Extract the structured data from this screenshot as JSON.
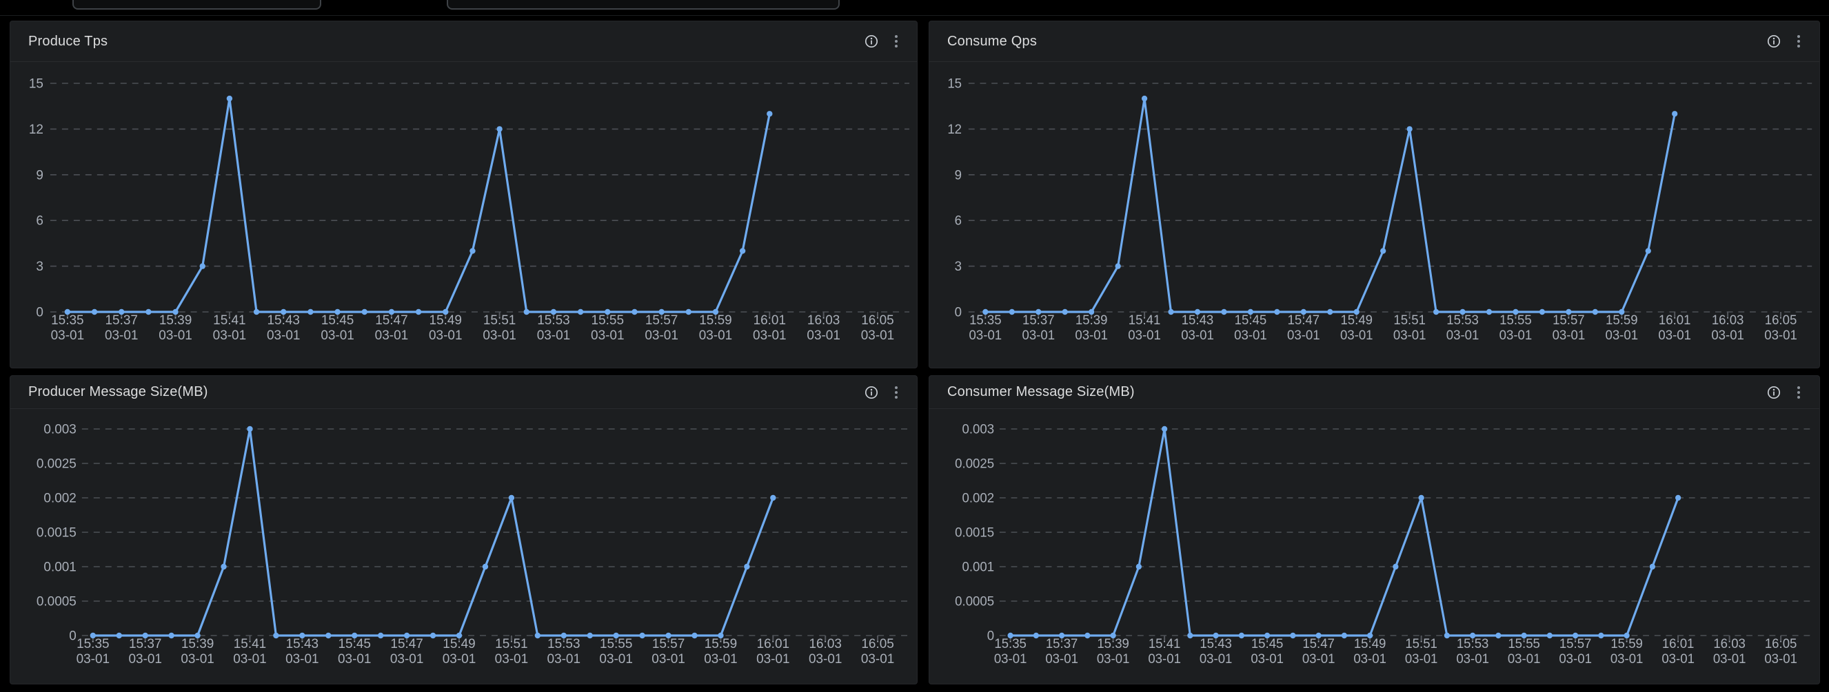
{
  "colors": {
    "page_bg": "#000000",
    "panel_bg": "#1c1e20",
    "line": "#6fabef",
    "grid": "#4d5056",
    "axis_text": "#a9afb8",
    "title_text": "#dcddde",
    "icon": "#c9ced4"
  },
  "topbar": {
    "inputs": [
      {
        "value": "",
        "placeholder": ""
      },
      {
        "value": "",
        "placeholder": ""
      }
    ]
  },
  "time_axis": {
    "tick_times": [
      "15:35",
      "15:37",
      "15:39",
      "15:41",
      "15:43",
      "15:45",
      "15:47",
      "15:49",
      "15:51",
      "15:53",
      "15:55",
      "15:57",
      "15:59",
      "16:01",
      "16:03",
      "16:05"
    ],
    "tick_date": "03-01"
  },
  "panels": [
    {
      "title": "Produce Tps",
      "header_icons": [
        "info-icon",
        "kebab-menu-icon"
      ],
      "chart_data": {
        "type": "line",
        "x": [
          "15:35",
          "15:36",
          "15:37",
          "15:38",
          "15:39",
          "15:40",
          "15:41",
          "15:42",
          "15:43",
          "15:44",
          "15:45",
          "15:46",
          "15:47",
          "15:48",
          "15:49",
          "15:50",
          "15:51",
          "15:52",
          "15:53",
          "15:54",
          "15:55",
          "15:56",
          "15:57",
          "15:58",
          "15:59",
          "16:00",
          "16:01"
        ],
        "values": [
          0,
          0,
          0,
          0,
          0,
          3,
          14,
          0,
          0,
          0,
          0,
          0,
          0,
          0,
          0,
          4,
          12,
          0,
          0,
          0,
          0,
          0,
          0,
          0,
          0,
          4,
          13
        ],
        "title": "Produce Tps",
        "xlabel": "",
        "ylabel": "",
        "ylim": [
          0,
          15
        ],
        "yticks": [
          0,
          3,
          6,
          9,
          12,
          15
        ],
        "ytick_labels": [
          "0",
          "3",
          "6",
          "9",
          "12",
          "15"
        ],
        "x_axis_end": "16:05",
        "grid": "dashed-horizontal",
        "legend": "none"
      }
    },
    {
      "title": "Consume Qps",
      "header_icons": [
        "info-icon",
        "kebab-menu-icon"
      ],
      "chart_data": {
        "type": "line",
        "x": [
          "15:35",
          "15:36",
          "15:37",
          "15:38",
          "15:39",
          "15:40",
          "15:41",
          "15:42",
          "15:43",
          "15:44",
          "15:45",
          "15:46",
          "15:47",
          "15:48",
          "15:49",
          "15:50",
          "15:51",
          "15:52",
          "15:53",
          "15:54",
          "15:55",
          "15:56",
          "15:57",
          "15:58",
          "15:59",
          "16:00",
          "16:01"
        ],
        "values": [
          0,
          0,
          0,
          0,
          0,
          3,
          14,
          0,
          0,
          0,
          0,
          0,
          0,
          0,
          0,
          4,
          12,
          0,
          0,
          0,
          0,
          0,
          0,
          0,
          0,
          4,
          13
        ],
        "title": "Consume Qps",
        "xlabel": "",
        "ylabel": "",
        "ylim": [
          0,
          15
        ],
        "yticks": [
          0,
          3,
          6,
          9,
          12,
          15
        ],
        "ytick_labels": [
          "0",
          "3",
          "6",
          "9",
          "12",
          "15"
        ],
        "x_axis_end": "16:05",
        "grid": "dashed-horizontal",
        "legend": "none"
      }
    },
    {
      "title": "Producer Message Size(MB)",
      "header_icons": [
        "info-icon",
        "kebab-menu-icon"
      ],
      "chart_data": {
        "type": "line",
        "x": [
          "15:35",
          "15:36",
          "15:37",
          "15:38",
          "15:39",
          "15:40",
          "15:41",
          "15:42",
          "15:43",
          "15:44",
          "15:45",
          "15:46",
          "15:47",
          "15:48",
          "15:49",
          "15:50",
          "15:51",
          "15:52",
          "15:53",
          "15:54",
          "15:55",
          "15:56",
          "15:57",
          "15:58",
          "15:59",
          "16:00",
          "16:01"
        ],
        "values": [
          0,
          0,
          0,
          0,
          0,
          0.001,
          0.003,
          0,
          0,
          0,
          0,
          0,
          0,
          0,
          0,
          0.001,
          0.002,
          0,
          0,
          0,
          0,
          0,
          0,
          0,
          0,
          0.001,
          0.002
        ],
        "title": "Producer Message Size(MB)",
        "xlabel": "",
        "ylabel": "",
        "ylim": [
          0,
          0.003
        ],
        "yticks": [
          0,
          0.0005,
          0.001,
          0.0015,
          0.002,
          0.0025,
          0.003
        ],
        "ytick_labels": [
          "0",
          "0.0005",
          "0.001",
          "0.0015",
          "0.002",
          "0.0025",
          "0.003"
        ],
        "x_axis_end": "16:05",
        "grid": "dashed-horizontal",
        "legend": "none"
      }
    },
    {
      "title": "Consumer Message Size(MB)",
      "header_icons": [
        "info-icon",
        "kebab-menu-icon"
      ],
      "chart_data": {
        "type": "line",
        "x": [
          "15:35",
          "15:36",
          "15:37",
          "15:38",
          "15:39",
          "15:40",
          "15:41",
          "15:42",
          "15:43",
          "15:44",
          "15:45",
          "15:46",
          "15:47",
          "15:48",
          "15:49",
          "15:50",
          "15:51",
          "15:52",
          "15:53",
          "15:54",
          "15:55",
          "15:56",
          "15:57",
          "15:58",
          "15:59",
          "16:00",
          "16:01"
        ],
        "values": [
          0,
          0,
          0,
          0,
          0,
          0.001,
          0.003,
          0,
          0,
          0,
          0,
          0,
          0,
          0,
          0,
          0.001,
          0.002,
          0,
          0,
          0,
          0,
          0,
          0,
          0,
          0,
          0.001,
          0.002
        ],
        "title": "Consumer Message Size(MB)",
        "xlabel": "",
        "ylabel": "",
        "ylim": [
          0,
          0.003
        ],
        "yticks": [
          0,
          0.0005,
          0.001,
          0.0015,
          0.002,
          0.0025,
          0.003
        ],
        "ytick_labels": [
          "0",
          "0.0005",
          "0.001",
          "0.0015",
          "0.002",
          "0.0025",
          "0.003"
        ],
        "x_axis_end": "16:05",
        "grid": "dashed-horizontal",
        "legend": "none"
      }
    }
  ]
}
